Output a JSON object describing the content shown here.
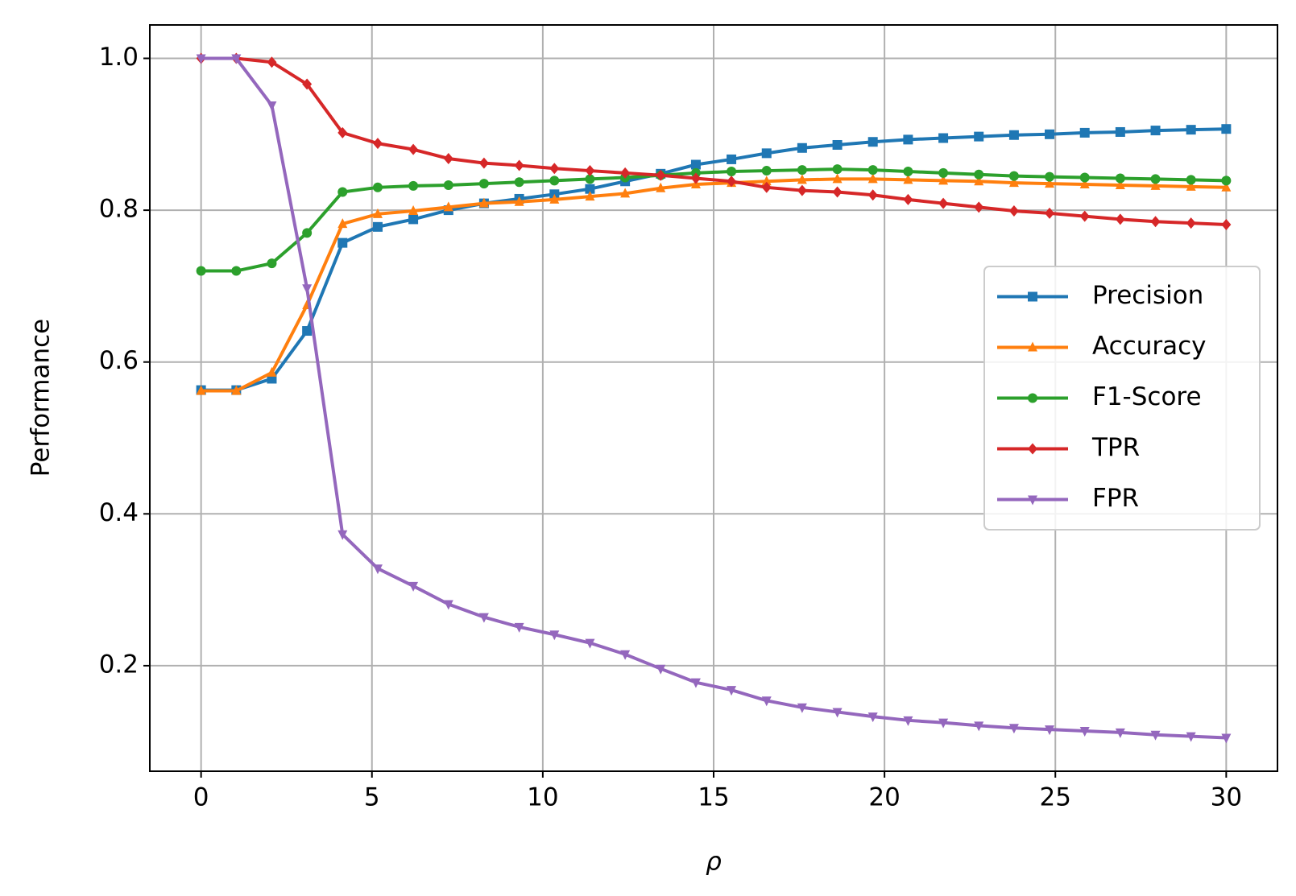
{
  "chart_data": {
    "type": "line",
    "xlabel": "ρ",
    "ylabel": "Performance",
    "x": [
      0,
      1.03,
      2.07,
      3.1,
      4.14,
      5.17,
      6.21,
      7.24,
      8.28,
      9.31,
      10.34,
      11.38,
      12.41,
      13.45,
      14.48,
      15.52,
      16.55,
      17.59,
      18.62,
      19.66,
      20.69,
      21.72,
      22.76,
      23.79,
      24.83,
      25.86,
      26.9,
      27.93,
      28.97,
      30
    ],
    "series": [
      {
        "name": "Precision",
        "color": "#1f77b4",
        "marker": "square",
        "values": [
          0.563,
          0.563,
          0.578,
          0.641,
          0.757,
          0.778,
          0.788,
          0.8,
          0.809,
          0.815,
          0.821,
          0.828,
          0.838,
          0.848,
          0.86,
          0.867,
          0.875,
          0.882,
          0.886,
          0.89,
          0.893,
          0.895,
          0.897,
          0.899,
          0.9,
          0.902,
          0.903,
          0.905,
          0.906,
          0.907
        ]
      },
      {
        "name": "Accuracy",
        "color": "#ff7f0e",
        "marker": "triangle-up",
        "values": [
          0.562,
          0.562,
          0.586,
          0.675,
          0.782,
          0.795,
          0.799,
          0.804,
          0.809,
          0.811,
          0.814,
          0.818,
          0.822,
          0.829,
          0.834,
          0.836,
          0.838,
          0.84,
          0.841,
          0.841,
          0.84,
          0.839,
          0.838,
          0.836,
          0.835,
          0.834,
          0.833,
          0.832,
          0.831,
          0.83
        ]
      },
      {
        "name": "F1-Score",
        "color": "#2ca02c",
        "marker": "circle",
        "values": [
          0.72,
          0.72,
          0.73,
          0.77,
          0.824,
          0.83,
          0.832,
          0.833,
          0.835,
          0.837,
          0.839,
          0.841,
          0.843,
          0.846,
          0.849,
          0.851,
          0.852,
          0.853,
          0.854,
          0.853,
          0.851,
          0.849,
          0.847,
          0.845,
          0.844,
          0.843,
          0.842,
          0.841,
          0.84,
          0.839
        ]
      },
      {
        "name": "TPR",
        "color": "#d62728",
        "marker": "diamond",
        "values": [
          1.0,
          1.0,
          0.995,
          0.966,
          0.902,
          0.888,
          0.88,
          0.868,
          0.862,
          0.859,
          0.855,
          0.852,
          0.849,
          0.846,
          0.842,
          0.838,
          0.83,
          0.826,
          0.824,
          0.82,
          0.814,
          0.809,
          0.804,
          0.799,
          0.796,
          0.792,
          0.788,
          0.785,
          0.783,
          0.781
        ]
      },
      {
        "name": "FPR",
        "color": "#9467bd",
        "marker": "triangle-down",
        "values": [
          1.0,
          1.0,
          0.938,
          0.697,
          0.373,
          0.328,
          0.305,
          0.281,
          0.264,
          0.251,
          0.241,
          0.23,
          0.215,
          0.196,
          0.178,
          0.168,
          0.154,
          0.145,
          0.139,
          0.133,
          0.128,
          0.125,
          0.121,
          0.118,
          0.116,
          0.114,
          0.112,
          0.109,
          0.107,
          0.105
        ]
      }
    ],
    "xlim": [
      -1.5,
      31.5
    ],
    "xticks": [
      0,
      5,
      10,
      15,
      20,
      25,
      30
    ],
    "ylim": [
      0.061,
      1.044
    ],
    "yticks": [
      0.2,
      0.4,
      0.6,
      0.8,
      {
        "value": 1,
        "label": "1.0"
      }
    ],
    "grid": true,
    "legend": "center right"
  }
}
